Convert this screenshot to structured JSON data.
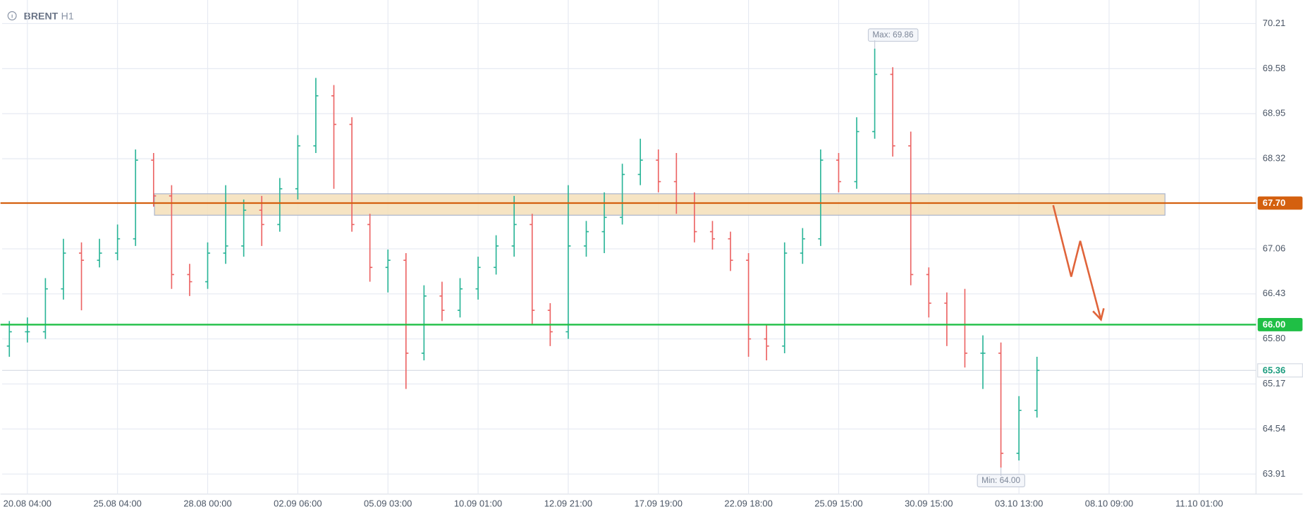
{
  "chart_data": {
    "type": "ohlc",
    "title": "BRENT",
    "subtitle": "H1",
    "up_color": "#2bb598",
    "down_color": "#ec6464",
    "x": [
      -0.2,
      0,
      0.2,
      0.4,
      0.6,
      0.8,
      1,
      1.2,
      1.4,
      1.6,
      1.8,
      2,
      2.2,
      2.4,
      2.6,
      2.8,
      3,
      3.2,
      3.4,
      3.6,
      3.8,
      4,
      4.2,
      4.4,
      4.6,
      4.8,
      5,
      5.2,
      5.4,
      5.6,
      5.8,
      6,
      6.2,
      6.4,
      6.6,
      6.8,
      7,
      7.2,
      7.4,
      7.6,
      7.8,
      8,
      8.2,
      8.4,
      8.6,
      8.8,
      9,
      9.2,
      9.4,
      9.6,
      9.8,
      10,
      10.2,
      10.4,
      10.6,
      10.8,
      11,
      11.2
    ],
    "open": [
      65.7,
      65.9,
      65.9,
      66.5,
      67.0,
      66.9,
      67.0,
      67.2,
      68.3,
      67.8,
      66.7,
      66.6,
      67.0,
      67.1,
      67.6,
      67.4,
      67.9,
      68.5,
      69.2,
      68.8,
      67.4,
      66.8,
      66.9,
      65.6,
      66.4,
      66.2,
      66.5,
      66.8,
      67.1,
      67.4,
      66.2,
      65.9,
      67.1,
      67.3,
      67.5,
      68.1,
      68.3,
      68.0,
      67.7,
      67.3,
      67.2,
      66.9,
      65.8,
      65.7,
      67.0,
      67.2,
      68.3,
      68.0,
      68.7,
      69.5,
      68.5,
      66.7,
      66.3,
      66.0,
      65.6,
      65.6,
      64.2,
      64.8
    ],
    "high": [
      66.05,
      66.1,
      66.65,
      67.2,
      67.15,
      67.2,
      67.4,
      68.45,
      68.4,
      67.95,
      66.85,
      67.15,
      67.95,
      67.75,
      67.8,
      68.05,
      68.65,
      69.45,
      69.35,
      68.9,
      67.55,
      67.05,
      67.0,
      66.55,
      66.6,
      66.65,
      66.95,
      67.25,
      67.8,
      67.55,
      66.3,
      67.95,
      67.45,
      67.85,
      68.25,
      68.6,
      68.45,
      68.4,
      67.85,
      67.45,
      67.3,
      67.0,
      66.0,
      67.15,
      67.35,
      68.45,
      68.4,
      68.9,
      69.86,
      69.6,
      68.7,
      66.8,
      66.45,
      66.5,
      65.85,
      65.75,
      65.0,
      65.55
    ],
    "low": [
      65.55,
      65.75,
      65.8,
      66.35,
      66.2,
      66.8,
      66.9,
      67.1,
      67.65,
      66.5,
      66.4,
      66.5,
      66.85,
      66.95,
      67.1,
      67.3,
      67.75,
      68.4,
      67.9,
      67.3,
      66.6,
      66.45,
      65.1,
      65.5,
      66.05,
      66.1,
      66.35,
      66.7,
      66.95,
      66.0,
      65.7,
      65.8,
      66.95,
      67.0,
      67.4,
      67.95,
      67.85,
      67.55,
      67.15,
      67.05,
      66.75,
      65.55,
      65.5,
      65.6,
      66.85,
      67.1,
      67.85,
      67.9,
      68.6,
      68.35,
      66.55,
      66.1,
      65.7,
      65.4,
      65.1,
      64.0,
      64.1,
      64.7
    ],
    "close": [
      65.9,
      65.9,
      66.5,
      67.0,
      66.9,
      67.0,
      67.2,
      68.3,
      67.8,
      66.7,
      66.6,
      67.0,
      67.1,
      67.6,
      67.4,
      67.9,
      68.5,
      69.2,
      68.8,
      67.4,
      66.8,
      66.9,
      65.6,
      66.4,
      66.2,
      66.5,
      66.8,
      67.1,
      67.4,
      66.2,
      65.9,
      67.1,
      67.3,
      67.5,
      68.1,
      68.3,
      68.0,
      67.7,
      67.3,
      67.2,
      66.9,
      65.8,
      65.7,
      67.0,
      67.2,
      68.3,
      68.0,
      68.7,
      69.5,
      68.5,
      66.7,
      66.3,
      66.0,
      65.6,
      65.6,
      64.2,
      64.8,
      65.36
    ],
    "xlim": [
      -0.28,
      13.63
    ],
    "ylim": [
      63.63,
      70.54
    ],
    "yticks": [
      70.21,
      69.58,
      68.95,
      68.32,
      67.06,
      66.43,
      {
        "value": 65.8,
        "label": "65.80"
      },
      65.17,
      64.54,
      63.91
    ],
    "xticks": [
      {
        "value": 0,
        "label": "20.08 04:00"
      },
      {
        "value": 1,
        "label": "25.08 04:00"
      },
      {
        "value": 2,
        "label": "28.08 00:00"
      },
      {
        "value": 3,
        "label": "02.09 06:00"
      },
      {
        "value": 4,
        "label": "05.09 03:00"
      },
      {
        "value": 5,
        "label": "10.09 01:00"
      },
      {
        "value": 6,
        "label": "12.09 21:00"
      },
      {
        "value": 7,
        "label": "17.09 19:00"
      },
      {
        "value": 8,
        "label": "22.09 18:00"
      },
      {
        "value": 9,
        "label": "25.09 15:00"
      },
      {
        "value": 10,
        "label": "30.09 15:00"
      },
      {
        "value": 11,
        "label": "03.10 13:00"
      },
      {
        "value": 12,
        "label": "08.10 09:00"
      },
      {
        "value": 13,
        "label": "11.10 01:00"
      }
    ],
    "grid": true,
    "levels": [
      {
        "value": 67.7,
        "label": "67.70",
        "color": "#d4600f"
      },
      {
        "value": 66.0,
        "label": "66.00",
        "color": "#1fbf45"
      }
    ],
    "last_price": {
      "value": 65.36,
      "label": "65.36",
      "color": "#1a9c7e"
    },
    "zone": {
      "from": 67.53,
      "to": 67.83,
      "x": [
        1.41,
        12.62
      ],
      "color": "#f5dfb8"
    },
    "annotations": [
      {
        "text": "Max: 69.86",
        "value": 69.86,
        "x": 9.4
      },
      {
        "text": "Min: 64.00",
        "value": 64.0,
        "x": 10.8
      }
    ],
    "forecast": {
      "x": [
        11.38,
        11.58,
        11.68,
        11.91
      ],
      "values": [
        67.67,
        66.67,
        67.17,
        66.07
      ],
      "color": "#e0643a"
    }
  }
}
